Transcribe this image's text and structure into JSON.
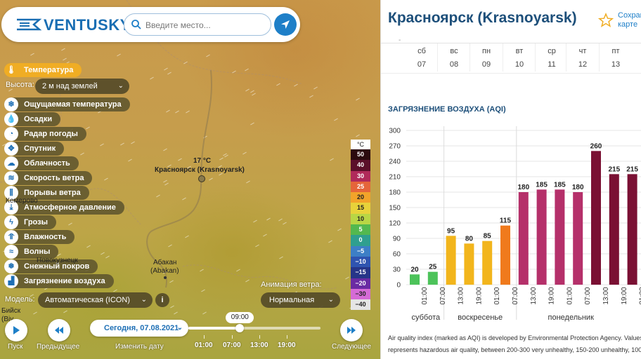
{
  "app": {
    "logo": "VENTUSKY",
    "search_placeholder": "Введите место..."
  },
  "layers": [
    {
      "label": "Температура",
      "icon": "thermometer-icon",
      "glyph": "🌡",
      "active": true
    },
    {
      "label": "Ощущаемая температура",
      "icon": "feels-like-icon",
      "glyph": "❄"
    },
    {
      "label": "Осадки",
      "icon": "precipitation-icon",
      "glyph": "💧"
    },
    {
      "label": "Радар погоды",
      "icon": "radar-icon",
      "glyph": "◔"
    },
    {
      "label": "Спутник",
      "icon": "satellite-icon",
      "glyph": "✥"
    },
    {
      "label": "Облачность",
      "icon": "cloud-icon",
      "glyph": "☁"
    },
    {
      "label": "Скорость ветра",
      "icon": "wind-icon",
      "glyph": "≋"
    },
    {
      "label": "Порывы ветра",
      "icon": "gust-icon",
      "glyph": "⫼"
    },
    {
      "label": "Атмосферное давление",
      "icon": "pressure-icon",
      "glyph": "⤓"
    },
    {
      "label": "Грозы",
      "icon": "lightning-icon",
      "glyph": "ϟ"
    },
    {
      "label": "Влажность",
      "icon": "humidity-icon",
      "glyph": "⥣"
    },
    {
      "label": "Волны",
      "icon": "waves-icon",
      "glyph": "≈"
    },
    {
      "label": "Снежный покров",
      "icon": "snow-icon",
      "glyph": "❅"
    },
    {
      "label": "Загрязнение воздуха",
      "icon": "factory-icon",
      "glyph": "▟"
    }
  ],
  "height": {
    "label": "Высота:",
    "value": "2 м над землей"
  },
  "map": {
    "city_temp": "17 °C",
    "city_name": "Красноярск (Krasnoyarsk)",
    "abakan_line1": "Абакан",
    "abakan_line2": "(Abakan)",
    "novokuznetsk": "Новокузнецк",
    "kemerovo": "Кемерово",
    "biysk_line1": "Бийск",
    "biysk_line2": "(Biy..."
  },
  "legend": {
    "unit": "°C",
    "items": [
      {
        "label": "50",
        "color": "#2b0a0e",
        "text": "#fff"
      },
      {
        "label": "40",
        "color": "#5b0f2a",
        "text": "#fff"
      },
      {
        "label": "30",
        "color": "#b02a5a",
        "text": "#fff"
      },
      {
        "label": "25",
        "color": "#e5653a",
        "text": "#fff"
      },
      {
        "label": "20",
        "color": "#f2a32a",
        "text": "#222"
      },
      {
        "label": "15",
        "color": "#e8d23a",
        "text": "#222"
      },
      {
        "label": "10",
        "color": "#b9d645",
        "text": "#222"
      },
      {
        "label": "5",
        "color": "#53b84f",
        "text": "#fff"
      },
      {
        "label": "0",
        "color": "#2f9f8f",
        "text": "#fff"
      },
      {
        "label": "−5",
        "color": "#3d7fc6",
        "text": "#fff"
      },
      {
        "label": "−10",
        "color": "#2f54b0",
        "text": "#fff"
      },
      {
        "label": "−15",
        "color": "#263588",
        "text": "#fff"
      },
      {
        "label": "−20",
        "color": "#6a2ba3",
        "text": "#fff"
      },
      {
        "label": "−30",
        "color": "#d56bd6",
        "text": "#222"
      },
      {
        "label": "−40",
        "color": "#e5e5e5",
        "text": "#222"
      }
    ]
  },
  "wind_animation": {
    "label": "Анимация ветра:",
    "value": "Нормальная"
  },
  "model": {
    "label": "Модель:",
    "value": "Автоматическая (ICON)",
    "info": "i"
  },
  "controls": {
    "play_label": "Пуск",
    "prev_label": "Предыдущее",
    "date_value": "Сегодня, 07.08.2021",
    "change_date_label": "Изменить дату",
    "next_label": "Следующее"
  },
  "timeline": {
    "current_time": "09:00",
    "progress": 0.39,
    "ticks": [
      "01:00",
      "07:00",
      "13:00",
      "19:00"
    ]
  },
  "panel": {
    "city_title": "Красноярск (Krasnoyarsk)",
    "save_line1": "Сохран",
    "save_line2": "карте",
    "days": [
      {
        "name": "сб",
        "num": "07"
      },
      {
        "name": "вс",
        "num": "08"
      },
      {
        "name": "пн",
        "num": "09"
      },
      {
        "name": "вт",
        "num": "10"
      },
      {
        "name": "ср",
        "num": "11"
      },
      {
        "name": "чт",
        "num": "12"
      },
      {
        "name": "пт",
        "num": "13"
      }
    ],
    "aqi_title": "ЗАГРЯЗНЕНИЕ ВОЗДУХА (AQI)",
    "footer_line1": "Air quality index (marked as AQI) is developed by Environmental Protection Agency. Values",
    "footer_line2": "represents hazardous air quality, between 200-300 very unhealthy, 150-200 unhealthy, 100-1"
  },
  "colors": {
    "brand_blue": "#1e7fc8",
    "title_blue": "#1d4f7a",
    "active_orange": "#f0ad24"
  },
  "chart_data": {
    "type": "bar",
    "title": "ЗАГРЯЗНЕНИЕ ВОЗДУХА (AQI)",
    "ylim": [
      0,
      300
    ],
    "yticks": [
      0,
      30,
      60,
      90,
      120,
      150,
      180,
      210,
      240,
      270,
      300
    ],
    "categories": [
      "01:00",
      "07:00",
      "13:00",
      "19:00",
      "01:00",
      "07:00",
      "13:00",
      "19:00",
      "01:00",
      "07:00",
      "13:00",
      "19:00",
      "01:00"
    ],
    "values": [
      20,
      25,
      95,
      80,
      85,
      115,
      180,
      185,
      185,
      180,
      260,
      215,
      215
    ],
    "bar_colors": [
      "#4cc35a",
      "#4cc35a",
      "#f2b51c",
      "#f2b51c",
      "#f2b51c",
      "#f07a1c",
      "#b5306a",
      "#b5306a",
      "#b5306a",
      "#b5306a",
      "#7a1033",
      "#7a1033",
      "#7a1033"
    ],
    "day_groups": [
      {
        "label": "суббота",
        "start": 0,
        "count": 2
      },
      {
        "label": "воскресенье",
        "start": 2,
        "count": 4
      },
      {
        "label": "понедельник",
        "start": 6,
        "count": 6
      }
    ],
    "grid": true
  }
}
